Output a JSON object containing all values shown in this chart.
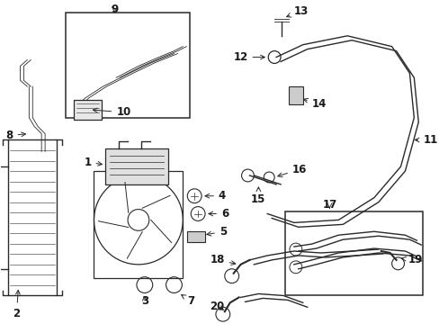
{
  "bg_color": "#ffffff",
  "line_color": "#2a2a2a",
  "label_color": "#1a1a1a",
  "font_size": 8.5,
  "lw_thick": 1.5,
  "lw_med": 1.0,
  "lw_thin": 0.6
}
